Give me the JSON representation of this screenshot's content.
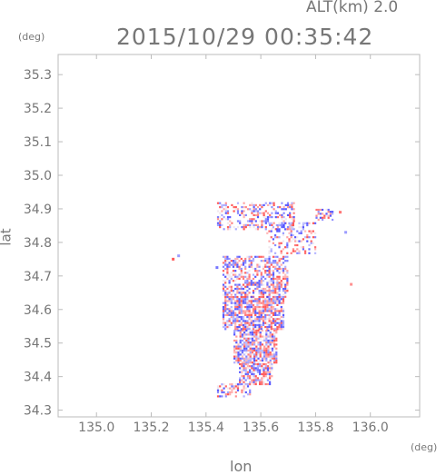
{
  "header": {
    "altitude": "ALT(km) 2.0",
    "timestamp": "2015/10/29 00:35:42"
  },
  "chart_data": {
    "type": "heatmap",
    "title": "2015/10/29 00:35:42",
    "subtitle": "ALT(km) 2.0",
    "xlabel": "lon",
    "ylabel": "lat",
    "x_unit": "(deg)",
    "y_unit": "(deg)",
    "xlim": [
      134.86,
      136.18
    ],
    "ylim": [
      34.28,
      35.36
    ],
    "x_ticks": [
      135.0,
      135.2,
      135.4,
      135.6,
      135.8,
      136.0
    ],
    "x_tick_labels": [
      "135.0",
      "135.2",
      "135.4",
      "135.6",
      "135.8",
      "136.0"
    ],
    "y_ticks": [
      34.3,
      34.4,
      34.5,
      34.6,
      34.7,
      34.8,
      34.9,
      35.0,
      35.1,
      35.2,
      35.3
    ],
    "y_tick_labels": [
      "34.3",
      "34.4",
      "34.5",
      "34.6",
      "34.7",
      "34.8",
      "34.9",
      "35.0",
      "35.1",
      "35.2",
      "35.3"
    ],
    "colors": {
      "positive": "#ff6666",
      "negative": "#6f6fff",
      "neutral": "#f2e8ee"
    },
    "regions": [
      {
        "lon": [
          135.44,
          135.72
        ],
        "lat": [
          34.84,
          34.92
        ],
        "density": 0.45
      },
      {
        "lon": [
          135.62,
          135.8
        ],
        "lat": [
          34.77,
          34.86
        ],
        "density": 0.35
      },
      {
        "lon": [
          135.46,
          135.7
        ],
        "lat": [
          34.64,
          34.76
        ],
        "density": 0.6
      },
      {
        "lon": [
          135.46,
          135.68
        ],
        "lat": [
          34.54,
          34.64
        ],
        "density": 0.75
      },
      {
        "lon": [
          135.5,
          135.66
        ],
        "lat": [
          34.44,
          34.54
        ],
        "density": 0.8
      },
      {
        "lon": [
          135.52,
          135.64
        ],
        "lat": [
          34.38,
          34.44
        ],
        "density": 0.7
      },
      {
        "lon": [
          135.44,
          135.56
        ],
        "lat": [
          34.34,
          34.38
        ],
        "density": 0.5
      },
      {
        "lon": [
          135.8,
          135.86
        ],
        "lat": [
          34.87,
          34.9
        ],
        "density": 0.6
      }
    ],
    "isolated_points": [
      {
        "lon": 135.28,
        "lat": 34.75,
        "v": 1
      },
      {
        "lon": 135.3,
        "lat": 34.76,
        "v": -0.5
      },
      {
        "lon": 135.93,
        "lat": 34.675,
        "v": 0.6
      },
      {
        "lon": 135.91,
        "lat": 34.83,
        "v": -0.5
      },
      {
        "lon": 135.89,
        "lat": 34.89,
        "v": 0.8
      },
      {
        "lon": 135.44,
        "lat": 34.725,
        "v": -0.8
      }
    ]
  }
}
